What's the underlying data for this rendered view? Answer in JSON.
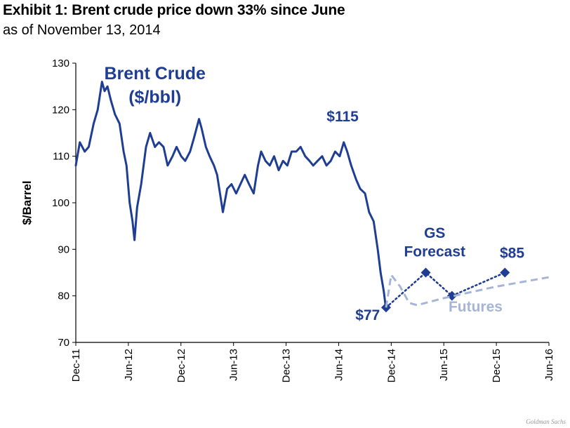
{
  "header": {
    "title": "Exhibit 1: Brent crude price down 33% since June",
    "subtitle": "as of November 13, 2014"
  },
  "credit": "Goldman Sachs",
  "colors": {
    "spot": "#1f3e93",
    "futures": "#a6b5d7",
    "axis": "#000000"
  },
  "chart_data": {
    "type": "line",
    "title": "Exhibit 1: Brent crude price down 33% since June",
    "subtitle": "as of November 13, 2014",
    "xlabel": "",
    "ylabel": "$/Barrel",
    "ylim": [
      70,
      130
    ],
    "yticks": [
      70,
      80,
      90,
      100,
      110,
      120,
      130
    ],
    "xlim": [
      "2011-12-01",
      "2016-06-01"
    ],
    "xticks": [
      "Dec-11",
      "Jun-12",
      "Dec-12",
      "Jun-13",
      "Dec-13",
      "Jun-14",
      "Dec-14",
      "Jun-15",
      "Dec-15",
      "Jun-16"
    ],
    "grid": false,
    "series": [
      {
        "name": "Brent Crude ($/bbl)",
        "style": "solid",
        "x": [
          "2011-12-01",
          "2011-12-15",
          "2012-01-01",
          "2012-01-15",
          "2012-02-01",
          "2012-02-15",
          "2012-03-01",
          "2012-03-10",
          "2012-03-20",
          "2012-04-01",
          "2012-04-15",
          "2012-05-01",
          "2012-05-15",
          "2012-05-25",
          "2012-06-05",
          "2012-06-15",
          "2012-06-22",
          "2012-07-01",
          "2012-07-15",
          "2012-08-01",
          "2012-08-15",
          "2012-09-01",
          "2012-09-15",
          "2012-10-01",
          "2012-10-15",
          "2012-11-01",
          "2012-11-15",
          "2012-12-01",
          "2012-12-15",
          "2013-01-01",
          "2013-01-15",
          "2013-02-01",
          "2013-02-10",
          "2013-02-25",
          "2013-03-10",
          "2013-03-25",
          "2013-04-05",
          "2013-04-15",
          "2013-04-25",
          "2013-05-10",
          "2013-05-25",
          "2013-06-10",
          "2013-06-25",
          "2013-07-10",
          "2013-07-25",
          "2013-08-10",
          "2013-08-25",
          "2013-09-05",
          "2013-09-20",
          "2013-10-05",
          "2013-10-20",
          "2013-11-05",
          "2013-11-20",
          "2013-12-05",
          "2013-12-20",
          "2014-01-05",
          "2014-01-20",
          "2014-02-05",
          "2014-02-20",
          "2014-03-05",
          "2014-03-20",
          "2014-04-05",
          "2014-04-20",
          "2014-05-05",
          "2014-05-20",
          "2014-06-05",
          "2014-06-19",
          "2014-07-01",
          "2014-07-15",
          "2014-08-01",
          "2014-08-15",
          "2014-09-01",
          "2014-09-15",
          "2014-10-01",
          "2014-10-15",
          "2014-10-25",
          "2014-11-05",
          "2014-11-13"
        ],
        "values": [
          108,
          113,
          111,
          112,
          117,
          120,
          126,
          124,
          125,
          122,
          119,
          117,
          111,
          108,
          100,
          96,
          92,
          99,
          104,
          112,
          115,
          112,
          113,
          112,
          108,
          110,
          112,
          110,
          109,
          111,
          114,
          118,
          116,
          112,
          110,
          108,
          106,
          102,
          98,
          103,
          104,
          102,
          104,
          106,
          104,
          102,
          108,
          111,
          109,
          108,
          110,
          107,
          109,
          108,
          111,
          111,
          112,
          110,
          109,
          108,
          109,
          110,
          108,
          109,
          111,
          110,
          113,
          111,
          108,
          105,
          103,
          102,
          98,
          96,
          90,
          85,
          81,
          77
        ]
      },
      {
        "name": "GS Forecast",
        "style": "dotted",
        "x": [
          "2014-11-13",
          "2015-03-31",
          "2015-06-30",
          "2015-12-31"
        ],
        "values": [
          77.5,
          85,
          80,
          85
        ]
      },
      {
        "name": "Futures",
        "style": "dashed",
        "x": [
          "2014-11-13",
          "2014-12-01",
          "2015-01-01",
          "2015-02-01",
          "2015-03-01",
          "2015-06-01",
          "2015-12-01",
          "2016-06-01"
        ],
        "values": [
          77.5,
          84.5,
          82,
          78.5,
          78,
          79.5,
          82,
          84
        ]
      }
    ],
    "annotations": [
      {
        "text": "Brent Crude",
        "x": "2012-09-01",
        "y": 126.5,
        "series": "Brent Crude ($/bbl)",
        "size": "large"
      },
      {
        "text": "($/bbl)",
        "x": "2012-09-01",
        "y": 121.5,
        "series": "Brent Crude ($/bbl)",
        "size": "large"
      },
      {
        "text": "$115",
        "x": "2014-06-15",
        "y": 117.5,
        "series": "Brent Crude ($/bbl)",
        "size": "medium"
      },
      {
        "text": "$77",
        "x": "2014-09-10",
        "y": 74.8,
        "series": "Brent Crude ($/bbl)",
        "size": "medium"
      },
      {
        "text": "GS",
        "x": "2015-05-01",
        "y": 92.5,
        "series": "GS Forecast",
        "size": "medium"
      },
      {
        "text": "Forecast",
        "x": "2015-05-01",
        "y": 88.5,
        "series": "GS Forecast",
        "size": "medium"
      },
      {
        "text": "$85",
        "x": "2016-01-25",
        "y": 88.2,
        "series": "GS Forecast",
        "size": "medium"
      },
      {
        "text": "Futures",
        "x": "2015-09-20",
        "y": 76.6,
        "series": "Futures",
        "size": "medium"
      }
    ]
  }
}
